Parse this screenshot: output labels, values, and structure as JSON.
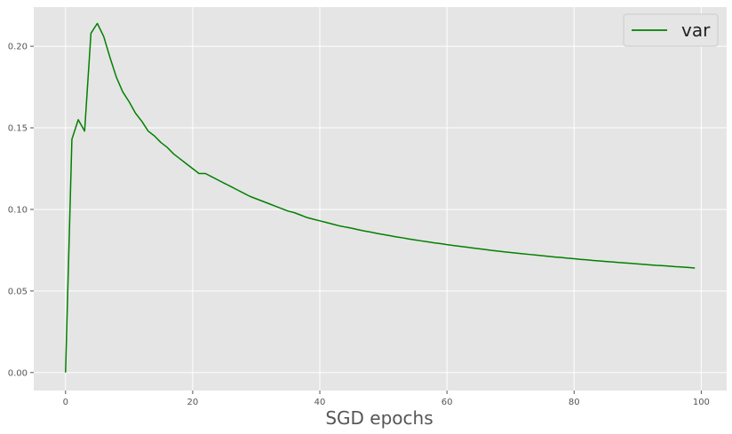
{
  "chart_data": {
    "type": "line",
    "title": "",
    "xlabel": "SGD epochs",
    "ylabel": "",
    "xlim": [
      -5,
      104
    ],
    "ylim": [
      -0.011,
      0.224
    ],
    "xticks": [
      0,
      20,
      40,
      60,
      80,
      100
    ],
    "yticks": [
      0.0,
      0.05,
      0.1,
      0.15,
      0.2
    ],
    "grid": true,
    "legend_position": "top-right",
    "colors": {
      "background": "#e5e5e5",
      "grid": "#ffffff",
      "line": "#008000"
    },
    "series": [
      {
        "name": "var",
        "x": [
          0,
          1,
          2,
          3,
          4,
          5,
          6,
          7,
          8,
          9,
          10,
          11,
          12,
          13,
          14,
          15,
          16,
          17,
          18,
          19,
          20,
          21,
          22,
          23,
          24,
          25,
          26,
          27,
          28,
          29,
          30,
          31,
          32,
          33,
          34,
          35,
          36,
          37,
          38,
          39,
          40,
          41,
          42,
          43,
          44,
          45,
          46,
          47,
          48,
          49,
          50,
          51,
          52,
          53,
          54,
          55,
          56,
          57,
          58,
          59,
          60,
          61,
          62,
          63,
          64,
          65,
          66,
          67,
          68,
          69,
          70,
          71,
          72,
          73,
          74,
          75,
          76,
          77,
          78,
          79,
          80,
          81,
          82,
          83,
          84,
          85,
          86,
          87,
          88,
          89,
          90,
          91,
          92,
          93,
          94,
          95,
          96,
          97,
          98,
          99
        ],
        "values": [
          0.0,
          0.143,
          0.155,
          0.148,
          0.208,
          0.214,
          0.206,
          0.193,
          0.181,
          0.172,
          0.166,
          0.159,
          0.154,
          0.148,
          0.145,
          0.141,
          0.138,
          0.134,
          0.131,
          0.128,
          0.125,
          0.122,
          0.122,
          0.12,
          0.118,
          0.116,
          0.114,
          0.112,
          0.11,
          0.108,
          0.1065,
          0.105,
          0.1035,
          0.102,
          0.1005,
          0.099,
          0.098,
          0.0965,
          0.095,
          0.094,
          0.093,
          0.092,
          0.091,
          0.09,
          0.0892,
          0.0885,
          0.0876,
          0.0868,
          0.0861,
          0.0853,
          0.0846,
          0.0839,
          0.0832,
          0.0826,
          0.0819,
          0.0813,
          0.0807,
          0.0801,
          0.0795,
          0.079,
          0.0784,
          0.0779,
          0.0774,
          0.0769,
          0.0764,
          0.0759,
          0.0754,
          0.0749,
          0.0745,
          0.074,
          0.0736,
          0.0732,
          0.0728,
          0.0724,
          0.072,
          0.0716,
          0.0712,
          0.0708,
          0.0705,
          0.0701,
          0.0698,
          0.0694,
          0.0691,
          0.0687,
          0.0684,
          0.0681,
          0.0678,
          0.0675,
          0.0672,
          0.0669,
          0.0666,
          0.0663,
          0.066,
          0.0657,
          0.0655,
          0.0652,
          0.0649,
          0.0647,
          0.0644,
          0.0641
        ]
      }
    ]
  }
}
